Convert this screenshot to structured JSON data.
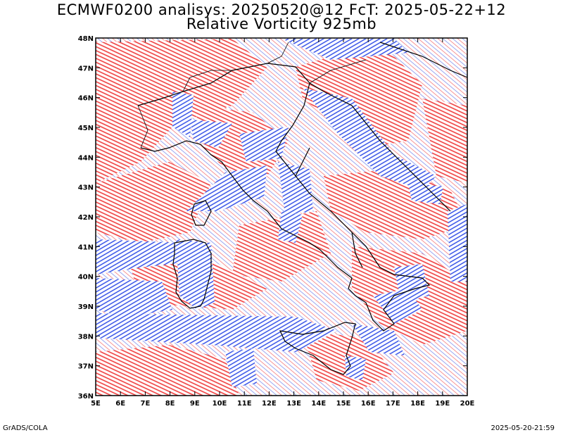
{
  "title_line1": "ECMWF0200 analisys: 20250520@12 FcT: 2025-05-22+12",
  "title_line2": "Relative Vorticity 925mb",
  "footer_left": "GrADS/COLA",
  "footer_right": "2025-05-20-21:59",
  "map": {
    "lon_range": [
      5,
      20
    ],
    "lat_range": [
      36,
      48
    ],
    "lon_ticks": [
      "5E",
      "6E",
      "7E",
      "8E",
      "9E",
      "10E",
      "11E",
      "12E",
      "13E",
      "14E",
      "15E",
      "16E",
      "17E",
      "18E",
      "19E",
      "20E"
    ],
    "lat_ticks": [
      "36N",
      "37N",
      "38N",
      "39N",
      "40N",
      "41N",
      "42N",
      "43N",
      "44N",
      "45N",
      "46N",
      "47N",
      "48N"
    ],
    "colors": {
      "positive": "#f03c3c",
      "negative": "#2846e6",
      "coastline": "#000000"
    }
  }
}
